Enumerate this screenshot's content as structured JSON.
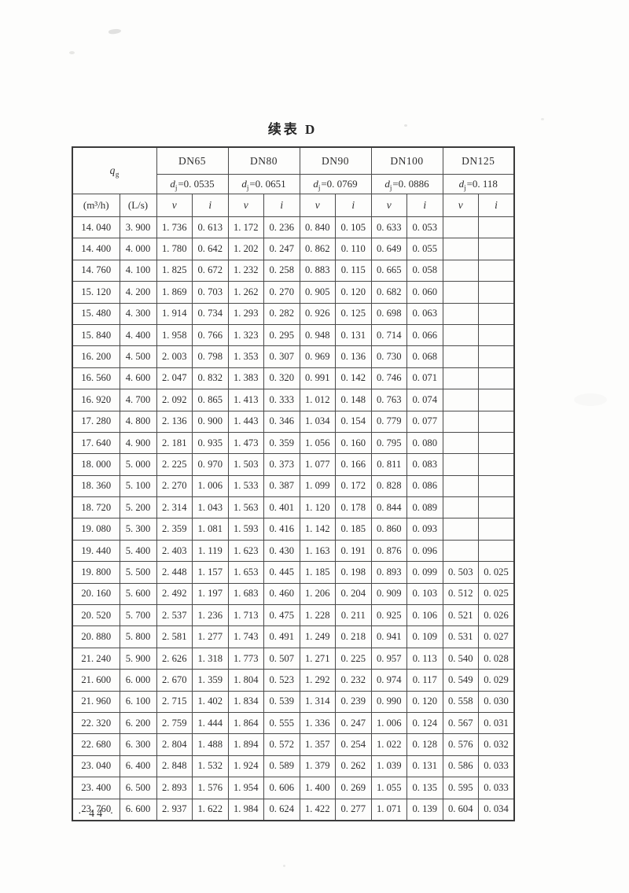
{
  "page": {
    "title": "续表 D",
    "page_number": "· 44 ·"
  },
  "table": {
    "qg": {
      "symbol": "q",
      "subscript": "g"
    },
    "units": {
      "flow_m3h": "(m³/h)",
      "flow_ls": "(L/s)"
    },
    "v_label": "v",
    "i_label": "i",
    "columns": [
      {
        "dn": "DN65",
        "dj": {
          "symbol": "d",
          "subscript": "j",
          "value": "=0. 0535"
        }
      },
      {
        "dn": "DN80",
        "dj": {
          "symbol": "d",
          "subscript": "j",
          "value": "=0. 0651"
        }
      },
      {
        "dn": "DN90",
        "dj": {
          "symbol": "d",
          "subscript": "j",
          "value": "=0. 0769"
        }
      },
      {
        "dn": "DN100",
        "dj": {
          "symbol": "d",
          "subscript": "j",
          "value": "=0. 0886"
        }
      },
      {
        "dn": "DN125",
        "dj": {
          "symbol": "d",
          "subscript": "j",
          "value": "=0. 118"
        }
      }
    ],
    "rows": [
      [
        "14. 040",
        "3. 900",
        "1. 736",
        "0. 613",
        "1. 172",
        "0. 236",
        "0. 840",
        "0. 105",
        "0. 633",
        "0. 053",
        "",
        ""
      ],
      [
        "14. 400",
        "4. 000",
        "1. 780",
        "0. 642",
        "1. 202",
        "0. 247",
        "0. 862",
        "0. 110",
        "0. 649",
        "0. 055",
        "",
        ""
      ],
      [
        "14. 760",
        "4. 100",
        "1. 825",
        "0. 672",
        "1. 232",
        "0. 258",
        "0. 883",
        "0. 115",
        "0. 665",
        "0. 058",
        "",
        ""
      ],
      [
        "15. 120",
        "4. 200",
        "1. 869",
        "0. 703",
        "1. 262",
        "0. 270",
        "0. 905",
        "0. 120",
        "0. 682",
        "0. 060",
        "",
        ""
      ],
      [
        "15. 480",
        "4. 300",
        "1. 914",
        "0. 734",
        "1. 293",
        "0. 282",
        "0. 926",
        "0. 125",
        "0. 698",
        "0. 063",
        "",
        ""
      ],
      [
        "15. 840",
        "4. 400",
        "1. 958",
        "0. 766",
        "1. 323",
        "0. 295",
        "0. 948",
        "0. 131",
        "0. 714",
        "0. 066",
        "",
        ""
      ],
      [
        "16. 200",
        "4. 500",
        "2. 003",
        "0. 798",
        "1. 353",
        "0. 307",
        "0. 969",
        "0. 136",
        "0. 730",
        "0. 068",
        "",
        ""
      ],
      [
        "16. 560",
        "4. 600",
        "2. 047",
        "0. 832",
        "1. 383",
        "0. 320",
        "0. 991",
        "0. 142",
        "0. 746",
        "0. 071",
        "",
        ""
      ],
      [
        "16. 920",
        "4. 700",
        "2. 092",
        "0. 865",
        "1. 413",
        "0. 333",
        "1. 012",
        "0. 148",
        "0. 763",
        "0. 074",
        "",
        ""
      ],
      [
        "17. 280",
        "4. 800",
        "2. 136",
        "0. 900",
        "1. 443",
        "0. 346",
        "1. 034",
        "0. 154",
        "0. 779",
        "0. 077",
        "",
        ""
      ],
      [
        "17. 640",
        "4. 900",
        "2. 181",
        "0. 935",
        "1. 473",
        "0. 359",
        "1. 056",
        "0. 160",
        "0. 795",
        "0. 080",
        "",
        ""
      ],
      [
        "18. 000",
        "5. 000",
        "2. 225",
        "0. 970",
        "1. 503",
        "0. 373",
        "1. 077",
        "0. 166",
        "0. 811",
        "0. 083",
        "",
        ""
      ],
      [
        "18. 360",
        "5. 100",
        "2. 270",
        "1. 006",
        "1. 533",
        "0. 387",
        "1. 099",
        "0. 172",
        "0. 828",
        "0. 086",
        "",
        ""
      ],
      [
        "18. 720",
        "5. 200",
        "2. 314",
        "1. 043",
        "1. 563",
        "0. 401",
        "1. 120",
        "0. 178",
        "0. 844",
        "0. 089",
        "",
        ""
      ],
      [
        "19. 080",
        "5. 300",
        "2. 359",
        "1. 081",
        "1. 593",
        "0. 416",
        "1. 142",
        "0. 185",
        "0. 860",
        "0. 093",
        "",
        ""
      ],
      [
        "19. 440",
        "5. 400",
        "2. 403",
        "1. 119",
        "1. 623",
        "0. 430",
        "1. 163",
        "0. 191",
        "0. 876",
        "0. 096",
        "",
        ""
      ],
      [
        "19. 800",
        "5. 500",
        "2. 448",
        "1. 157",
        "1. 653",
        "0. 445",
        "1. 185",
        "0. 198",
        "0. 893",
        "0. 099",
        "0. 503",
        "0. 025"
      ],
      [
        "20. 160",
        "5. 600",
        "2. 492",
        "1. 197",
        "1. 683",
        "0. 460",
        "1. 206",
        "0. 204",
        "0. 909",
        "0. 103",
        "0. 512",
        "0. 025"
      ],
      [
        "20. 520",
        "5. 700",
        "2. 537",
        "1. 236",
        "1. 713",
        "0. 475",
        "1. 228",
        "0. 211",
        "0. 925",
        "0. 106",
        "0. 521",
        "0. 026"
      ],
      [
        "20. 880",
        "5. 800",
        "2. 581",
        "1. 277",
        "1. 743",
        "0. 491",
        "1. 249",
        "0. 218",
        "0. 941",
        "0. 109",
        "0. 531",
        "0. 027"
      ],
      [
        "21. 240",
        "5. 900",
        "2. 626",
        "1. 318",
        "1. 773",
        "0. 507",
        "1. 271",
        "0. 225",
        "0. 957",
        "0. 113",
        "0. 540",
        "0. 028"
      ],
      [
        "21. 600",
        "6. 000",
        "2. 670",
        "1. 359",
        "1. 804",
        "0. 523",
        "1. 292",
        "0. 232",
        "0. 974",
        "0. 117",
        "0. 549",
        "0. 029"
      ],
      [
        "21. 960",
        "6. 100",
        "2. 715",
        "1. 402",
        "1. 834",
        "0. 539",
        "1. 314",
        "0. 239",
        "0. 990",
        "0. 120",
        "0. 558",
        "0. 030"
      ],
      [
        "22. 320",
        "6. 200",
        "2. 759",
        "1. 444",
        "1. 864",
        "0. 555",
        "1. 336",
        "0. 247",
        "1. 006",
        "0. 124",
        "0. 567",
        "0. 031"
      ],
      [
        "22. 680",
        "6. 300",
        "2. 804",
        "1. 488",
        "1. 894",
        "0. 572",
        "1. 357",
        "0. 254",
        "1. 022",
        "0. 128",
        "0. 576",
        "0. 032"
      ],
      [
        "23. 040",
        "6. 400",
        "2. 848",
        "1. 532",
        "1. 924",
        "0. 589",
        "1. 379",
        "0. 262",
        "1. 039",
        "0. 131",
        "0. 586",
        "0. 033"
      ],
      [
        "23. 400",
        "6. 500",
        "2. 893",
        "1. 576",
        "1. 954",
        "0. 606",
        "1. 400",
        "0. 269",
        "1. 055",
        "0. 135",
        "0. 595",
        "0. 033"
      ],
      [
        "23. 760",
        "6. 600",
        "2. 937",
        "1. 622",
        "1. 984",
        "0. 624",
        "1. 422",
        "0. 277",
        "1. 071",
        "0. 139",
        "0. 604",
        "0. 034"
      ]
    ]
  }
}
